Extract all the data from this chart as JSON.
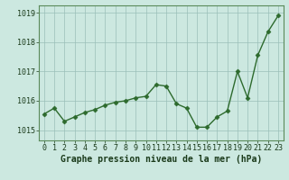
{
  "x": [
    0,
    1,
    2,
    3,
    4,
    5,
    6,
    7,
    8,
    9,
    10,
    11,
    12,
    13,
    14,
    15,
    16,
    17,
    18,
    19,
    20,
    21,
    22,
    23
  ],
  "y": [
    1015.55,
    1015.75,
    1015.3,
    1015.45,
    1015.6,
    1015.7,
    1015.85,
    1015.95,
    1016.0,
    1016.1,
    1016.15,
    1016.55,
    1016.5,
    1015.9,
    1015.75,
    1015.1,
    1015.1,
    1015.45,
    1015.65,
    1017.0,
    1016.1,
    1017.55,
    1018.35,
    1018.9
  ],
  "line_color": "#2d6a2d",
  "marker": "D",
  "marker_size": 2.5,
  "marker_color": "#2d6a2d",
  "bg_color": "#cce8e0",
  "grid_color": "#9abfb8",
  "xlabel_label": "Graphe pression niveau de la mer (hPa)",
  "xlabel_fontsize": 7.0,
  "xlabel_color": "#1a3a1a",
  "yticks": [
    1015,
    1016,
    1017,
    1018,
    1019
  ],
  "ylim": [
    1014.65,
    1019.25
  ],
  "xlim": [
    -0.5,
    23.5
  ],
  "xticks": [
    0,
    1,
    2,
    3,
    4,
    5,
    6,
    7,
    8,
    9,
    10,
    11,
    12,
    13,
    14,
    15,
    16,
    17,
    18,
    19,
    20,
    21,
    22,
    23
  ],
  "tick_fontsize": 6.0,
  "tick_color": "#1a3a1a",
  "spine_color": "#5a8a5a",
  "line_width": 1.0
}
